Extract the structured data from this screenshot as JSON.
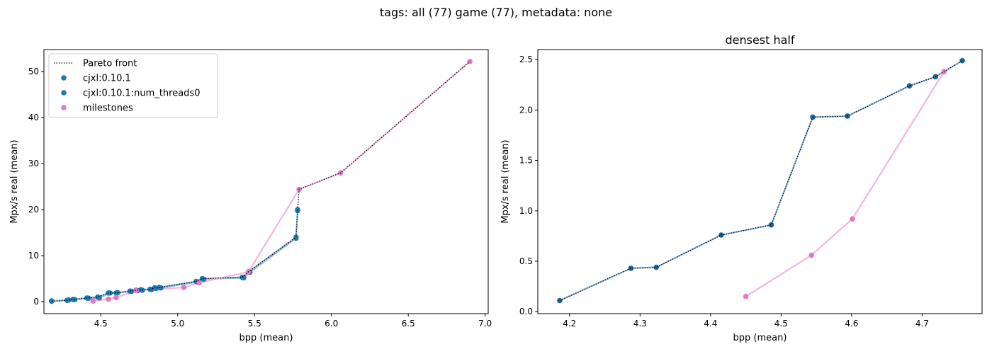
{
  "suptitle": "tags: all (77) game (77), metadata: none",
  "colors": {
    "pareto": "#000000",
    "cjxl": "#1f77b4",
    "cjxl_dark": "#1a6496",
    "milestones": "#e377c2",
    "cjxl_line": "#8fb8d8",
    "milestones_line": "#f2b6de"
  },
  "chart_data": [
    {
      "type": "scatter",
      "title": "",
      "xlabel": "bpp (mean)",
      "ylabel": "Mpx/s real (mean)",
      "xlim": [
        4.13,
        7.02
      ],
      "ylim": [
        -2.6,
        54.8
      ],
      "xticks": [
        4.5,
        5.0,
        5.5,
        6.0,
        6.5,
        7.0
      ],
      "xtick_labels": [
        "4.5",
        "5.0",
        "5.5",
        "6.0",
        "6.5",
        "7.0"
      ],
      "yticks": [
        0,
        10,
        20,
        30,
        40,
        50
      ],
      "ytick_labels": [
        "0",
        "10",
        "20",
        "30",
        "40",
        "50"
      ],
      "legend_placement": "upper-left",
      "legend": [
        "Pareto front",
        "cjxl:0.10.1",
        "cjxl:0.10.1:num_threads0",
        "milestones"
      ],
      "series": [
        {
          "name": "cjxl:0.10.1",
          "points": [
            [
              4.18,
              0.1
            ],
            [
              4.28,
              0.3
            ],
            [
              4.32,
              0.5
            ],
            [
              4.41,
              0.8
            ],
            [
              4.48,
              1.0
            ],
            [
              4.55,
              1.9
            ],
            [
              4.6,
              1.9
            ],
            [
              4.69,
              2.3
            ],
            [
              4.73,
              2.5
            ],
            [
              4.76,
              2.6
            ],
            [
              4.82,
              2.7
            ],
            [
              4.85,
              3.0
            ],
            [
              4.88,
              3.1
            ],
            [
              5.12,
              4.4
            ],
            [
              5.16,
              5.0
            ],
            [
              5.42,
              5.3
            ],
            [
              5.46,
              6.5
            ],
            [
              5.77,
              14.0
            ],
            [
              5.78,
              20.0
            ]
          ]
        },
        {
          "name": "cjxl:0.10.1:num_threads0",
          "points": [
            [
              4.18,
              0.15
            ],
            [
              4.29,
              0.35
            ],
            [
              4.33,
              0.45
            ],
            [
              4.42,
              0.75
            ],
            [
              4.49,
              0.85
            ],
            [
              4.56,
              1.9
            ],
            [
              4.61,
              1.95
            ],
            [
              4.7,
              2.25
            ],
            [
              4.74,
              2.4
            ],
            [
              4.77,
              2.5
            ],
            [
              4.83,
              2.65
            ],
            [
              4.86,
              2.9
            ],
            [
              4.89,
              3.0
            ],
            [
              5.13,
              4.3
            ],
            [
              5.17,
              4.9
            ],
            [
              5.43,
              5.2
            ],
            [
              5.47,
              6.4
            ],
            [
              5.77,
              13.8
            ],
            [
              5.78,
              19.8
            ]
          ]
        },
        {
          "name": "milestones",
          "points": [
            [
              4.45,
              0.15
            ],
            [
              4.55,
              0.55
            ],
            [
              4.6,
              0.9
            ],
            [
              4.73,
              2.4
            ],
            [
              5.04,
              3.1
            ],
            [
              5.14,
              4.1
            ],
            [
              5.46,
              6.5
            ],
            [
              5.79,
              24.4
            ],
            [
              6.06,
              28.0
            ],
            [
              6.9,
              52.2
            ]
          ]
        }
      ],
      "pareto_front": [
        [
          4.18,
          0.1
        ],
        [
          4.28,
          0.3
        ],
        [
          4.32,
          0.5
        ],
        [
          4.41,
          0.8
        ],
        [
          4.48,
          1.0
        ],
        [
          4.55,
          1.9
        ],
        [
          4.6,
          1.9
        ],
        [
          4.69,
          2.3
        ],
        [
          4.73,
          2.5
        ],
        [
          4.76,
          2.6
        ],
        [
          4.82,
          2.7
        ],
        [
          4.85,
          3.0
        ],
        [
          4.88,
          3.1
        ],
        [
          5.12,
          4.4
        ],
        [
          5.16,
          5.0
        ],
        [
          5.42,
          5.3
        ],
        [
          5.46,
          6.5
        ],
        [
          5.77,
          14.0
        ],
        [
          5.78,
          20.0
        ],
        [
          5.79,
          24.4
        ],
        [
          6.06,
          28.0
        ],
        [
          6.9,
          52.2
        ]
      ]
    },
    {
      "type": "scatter",
      "title": "densest half",
      "xlabel": "bpp (mean)",
      "ylabel": "Mpx/s real (mean)",
      "xlim": [
        4.155,
        4.785
      ],
      "ylim": [
        -0.02,
        2.6
      ],
      "xticks": [
        4.2,
        4.3,
        4.4,
        4.5,
        4.6,
        4.7
      ],
      "xtick_labels": [
        "4.2",
        "4.3",
        "4.4",
        "4.5",
        "4.6",
        "4.7"
      ],
      "yticks": [
        0.0,
        0.5,
        1.0,
        1.5,
        2.0,
        2.5
      ],
      "ytick_labels": [
        "0.0",
        "0.5",
        "1.0",
        "1.5",
        "2.0",
        "2.5"
      ],
      "series": [
        {
          "name": "cjxl:0.10.1",
          "points": [
            [
              4.186,
              0.11
            ],
            [
              4.287,
              0.43
            ],
            [
              4.323,
              0.44
            ],
            [
              4.415,
              0.76
            ],
            [
              4.486,
              0.86
            ],
            [
              4.545,
              1.93
            ],
            [
              4.594,
              1.94
            ],
            [
              4.682,
              2.24
            ],
            [
              4.719,
              2.33
            ],
            [
              4.757,
              2.49
            ]
          ]
        },
        {
          "name": "milestones",
          "points": [
            [
              4.45,
              0.15
            ],
            [
              4.543,
              0.56
            ],
            [
              4.601,
              0.92
            ],
            [
              4.731,
              2.38
            ]
          ]
        }
      ],
      "pareto_front": [
        [
          4.186,
          0.11
        ],
        [
          4.287,
          0.43
        ],
        [
          4.323,
          0.44
        ],
        [
          4.415,
          0.76
        ],
        [
          4.486,
          0.86
        ],
        [
          4.545,
          1.93
        ],
        [
          4.594,
          1.94
        ],
        [
          4.682,
          2.24
        ],
        [
          4.719,
          2.33
        ],
        [
          4.757,
          2.49
        ]
      ]
    }
  ]
}
